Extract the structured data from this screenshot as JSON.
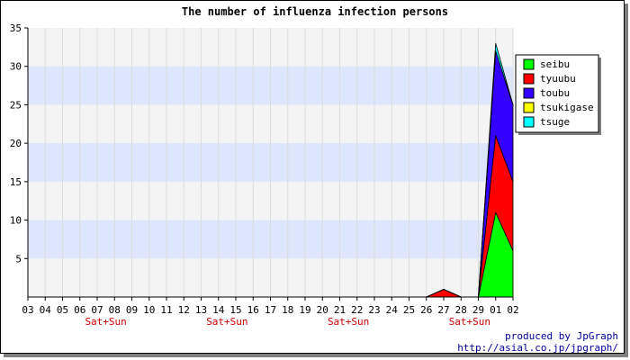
{
  "chart_data": {
    "type": "area",
    "stacked": true,
    "title": "The number of influenza infection persons",
    "xlabel": "",
    "ylabel": "",
    "ylim": [
      0,
      35
    ],
    "yticks": [
      5,
      10,
      15,
      20,
      25,
      30,
      35
    ],
    "grid": "horizontal bands and vertical lines",
    "legend_position": "right",
    "categories": [
      "03",
      "04",
      "05",
      "06",
      "07",
      "08",
      "09",
      "10",
      "11",
      "12",
      "13",
      "14",
      "15",
      "16",
      "17",
      "18",
      "19",
      "20",
      "21",
      "22",
      "23",
      "24",
      "25",
      "26",
      "27",
      "28",
      "29",
      "01",
      "02"
    ],
    "weekend_markers": [
      {
        "category": "07",
        "label": "Sat+Sun"
      },
      {
        "category": "14",
        "label": "Sat+Sun"
      },
      {
        "category": "21",
        "label": "Sat+Sun"
      },
      {
        "category": "28",
        "label": "Sat+Sun"
      }
    ],
    "series": [
      {
        "name": "seibu",
        "color": "#00ff00",
        "values": [
          0,
          0,
          0,
          0,
          0,
          0,
          0,
          0,
          0,
          0,
          0,
          0,
          0,
          0,
          0,
          0,
          0,
          0,
          0,
          0,
          0,
          0,
          0,
          0,
          0,
          0,
          0,
          11,
          6
        ]
      },
      {
        "name": "tyuubu",
        "color": "#ff0000",
        "values": [
          0,
          0,
          0,
          0,
          0,
          0,
          0,
          0,
          0,
          0,
          0,
          0,
          0,
          0,
          0,
          0,
          0,
          0,
          0,
          0,
          0,
          0,
          0,
          0,
          1,
          0,
          0,
          10,
          9
        ]
      },
      {
        "name": "toubu",
        "color": "#3300ff",
        "values": [
          0,
          0,
          0,
          0,
          0,
          0,
          0,
          0,
          0,
          0,
          0,
          0,
          0,
          0,
          0,
          0,
          0,
          0,
          0,
          0,
          0,
          0,
          0,
          0,
          0,
          0,
          0,
          11,
          10
        ]
      },
      {
        "name": "tsukigase",
        "color": "#ffff00",
        "values": [
          0,
          0,
          0,
          0,
          0,
          0,
          0,
          0,
          0,
          0,
          0,
          0,
          0,
          0,
          0,
          0,
          0,
          0,
          0,
          0,
          0,
          0,
          0,
          0,
          0,
          0,
          0,
          0,
          0
        ]
      },
      {
        "name": "tsuge",
        "color": "#00ffff",
        "values": [
          0,
          0,
          0,
          0,
          0,
          0,
          0,
          0,
          0,
          0,
          0,
          0,
          0,
          0,
          0,
          0,
          0,
          0,
          0,
          0,
          0,
          0,
          0,
          0,
          0,
          0,
          0,
          1,
          0
        ]
      }
    ]
  },
  "credits": {
    "line1": "produced by JpGraph",
    "line2": "http://asial.co.jp/jpgraph/"
  }
}
